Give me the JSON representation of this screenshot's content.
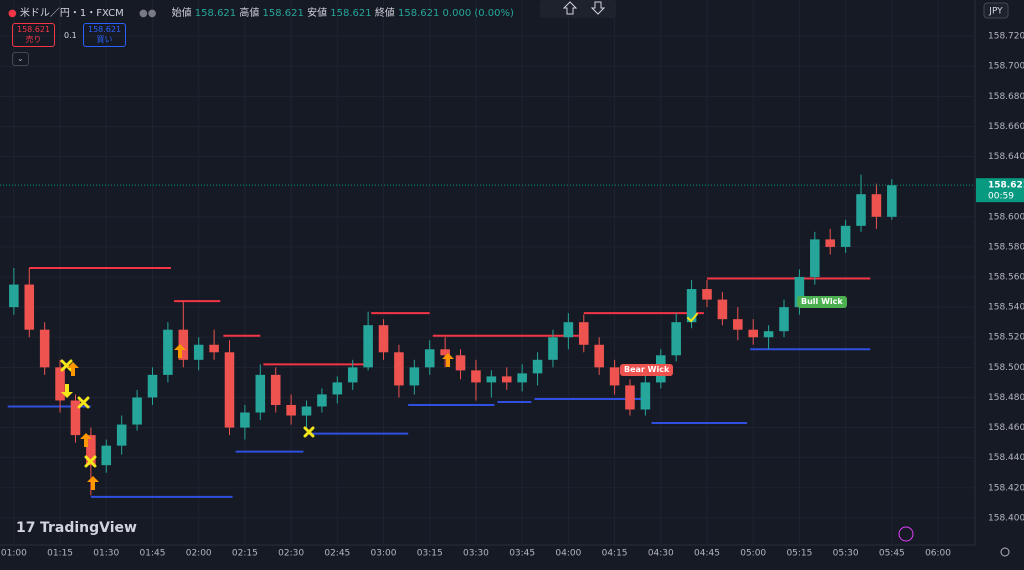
{
  "header": {
    "symbol": "米ドル／円・1・FXCM",
    "ohlc": [
      {
        "label": "始値",
        "value": "158.621"
      },
      {
        "label": "高値",
        "value": "158.621"
      },
      {
        "label": "安値",
        "value": "158.621"
      },
      {
        "label": "終値",
        "value": "158.621"
      }
    ],
    "change": "0.000 (0.00%)",
    "sell": {
      "price": "158.621",
      "label": "売り"
    },
    "spread": "0.1",
    "buy": {
      "price": "158.621",
      "label": "買い"
    },
    "currency": "JPY",
    "logo": "TradingView"
  },
  "chart_data": {
    "type": "candlestick",
    "x": [
      60,
      65,
      70,
      75,
      80,
      85,
      90,
      95,
      100,
      105,
      110,
      115,
      120,
      125,
      130,
      135,
      140,
      145,
      150,
      155,
      160,
      165,
      170,
      175,
      180,
      185,
      190,
      195,
      200,
      205,
      210,
      215,
      220,
      225,
      230,
      235,
      240,
      245,
      250,
      255,
      260,
      265,
      270,
      275,
      280,
      285,
      290,
      295,
      300,
      305,
      310,
      315,
      320,
      325,
      330,
      335,
      340,
      345
    ],
    "open": [
      158.54,
      158.555,
      158.525,
      158.5,
      158.478,
      158.455,
      158.435,
      158.448,
      158.462,
      158.48,
      158.495,
      158.525,
      158.505,
      158.515,
      158.51,
      158.46,
      158.47,
      158.495,
      158.475,
      158.468,
      158.474,
      158.482,
      158.49,
      158.5,
      158.528,
      158.51,
      158.488,
      158.5,
      158.512,
      158.508,
      158.498,
      158.49,
      158.494,
      158.49,
      158.496,
      158.505,
      158.52,
      158.53,
      158.515,
      158.5,
      158.488,
      158.472,
      158.49,
      158.508,
      158.53,
      158.552,
      158.545,
      158.532,
      158.525,
      158.52,
      158.524,
      158.54,
      158.56,
      158.585,
      158.58,
      158.594,
      158.615,
      158.6
    ],
    "high": [
      158.566,
      158.566,
      158.53,
      158.505,
      158.482,
      158.46,
      158.452,
      158.468,
      158.485,
      158.5,
      158.53,
      158.544,
      158.52,
      158.525,
      158.518,
      158.475,
      158.502,
      158.5,
      158.482,
      158.478,
      158.486,
      158.494,
      158.505,
      158.537,
      158.532,
      158.515,
      158.505,
      158.518,
      158.52,
      158.512,
      158.505,
      158.498,
      158.5,
      158.502,
      158.51,
      158.525,
      158.536,
      158.535,
      158.52,
      158.505,
      158.492,
      158.495,
      158.512,
      158.536,
      158.558,
      158.558,
      158.55,
      158.54,
      158.532,
      158.528,
      158.545,
      158.565,
      158.59,
      158.592,
      158.598,
      158.628,
      158.622,
      158.625
    ],
    "low": [
      158.535,
      158.52,
      158.495,
      158.47,
      158.45,
      158.415,
      158.43,
      158.442,
      158.458,
      158.475,
      158.49,
      158.5,
      158.498,
      158.505,
      158.455,
      158.452,
      158.465,
      158.47,
      158.462,
      158.46,
      158.47,
      158.476,
      158.485,
      158.498,
      158.505,
      158.48,
      158.482,
      158.495,
      158.5,
      158.492,
      158.478,
      158.48,
      158.485,
      158.484,
      158.488,
      158.5,
      158.512,
      158.51,
      158.495,
      158.482,
      158.468,
      158.468,
      158.486,
      158.504,
      158.526,
      158.54,
      158.528,
      158.518,
      158.515,
      158.512,
      158.52,
      158.535,
      158.555,
      158.575,
      158.576,
      158.59,
      158.592,
      158.598
    ],
    "close": [
      158.555,
      158.525,
      158.5,
      158.478,
      158.455,
      158.435,
      158.448,
      158.462,
      158.48,
      158.495,
      158.525,
      158.505,
      158.515,
      158.51,
      158.46,
      158.47,
      158.495,
      158.475,
      158.468,
      158.474,
      158.482,
      158.49,
      158.5,
      158.528,
      158.51,
      158.488,
      158.5,
      158.512,
      158.508,
      158.498,
      158.49,
      158.494,
      158.49,
      158.496,
      158.505,
      158.52,
      158.53,
      158.515,
      158.5,
      158.488,
      158.472,
      158.49,
      158.508,
      158.53,
      158.552,
      158.545,
      158.532,
      158.525,
      158.52,
      158.524,
      158.54,
      158.56,
      158.585,
      158.58,
      158.594,
      158.615,
      158.6,
      158.621
    ],
    "up_color": "#26a69a",
    "down_color": "#ef5350",
    "xlim": [
      55.5,
      372
    ],
    "ylim": [
      158.382,
      158.744
    ],
    "xticks": [
      {
        "value": 60,
        "label": "01:00"
      },
      {
        "value": 75,
        "label": "01:15"
      },
      {
        "value": 90,
        "label": "01:30"
      },
      {
        "value": 105,
        "label": "01:45"
      },
      {
        "value": 120,
        "label": "02:00"
      },
      {
        "value": 135,
        "label": "02:15"
      },
      {
        "value": 150,
        "label": "02:30"
      },
      {
        "value": 165,
        "label": "02:45"
      },
      {
        "value": 180,
        "label": "03:00"
      },
      {
        "value": 195,
        "label": "03:15"
      },
      {
        "value": 210,
        "label": "03:30"
      },
      {
        "value": 225,
        "label": "03:45"
      },
      {
        "value": 240,
        "label": "04:00"
      },
      {
        "value": 255,
        "label": "04:15"
      },
      {
        "value": 270,
        "label": "04:30"
      },
      {
        "value": 285,
        "label": "04:45"
      },
      {
        "value": 300,
        "label": "05:00"
      },
      {
        "value": 315,
        "label": "05:15"
      },
      {
        "value": 330,
        "label": "05:30"
      },
      {
        "value": 345,
        "label": "05:45"
      },
      {
        "value": 360,
        "label": "06:00"
      }
    ],
    "yticks": [
      {
        "value": 158.4,
        "label": "158.400"
      },
      {
        "value": 158.42,
        "label": "158.420"
      },
      {
        "value": 158.44,
        "label": "158.440"
      },
      {
        "value": 158.46,
        "label": "158.460"
      },
      {
        "value": 158.48,
        "label": "158.480"
      },
      {
        "value": 158.5,
        "label": "158.500"
      },
      {
        "value": 158.52,
        "label": "158.520"
      },
      {
        "value": 158.54,
        "label": "158.540"
      },
      {
        "value": 158.56,
        "label": "158.560"
      },
      {
        "value": 158.58,
        "label": "158.580"
      },
      {
        "value": 158.6,
        "label": "158.600"
      },
      {
        "value": 158.64,
        "label": "158.640"
      },
      {
        "value": 158.66,
        "label": "158.660"
      },
      {
        "value": 158.68,
        "label": "158.680"
      },
      {
        "value": 158.7,
        "label": "158.700"
      },
      {
        "value": 158.72,
        "label": "158.720"
      }
    ],
    "grid": true,
    "levels": [
      {
        "value": 158.566,
        "x": [
          65,
          111
        ],
        "color": "#f23645"
      },
      {
        "value": 158.544,
        "x": [
          112,
          127
        ],
        "color": "#f23645"
      },
      {
        "value": 158.521,
        "x": [
          128,
          140
        ],
        "color": "#f23645"
      },
      {
        "value": 158.502,
        "x": [
          141,
          175
        ],
        "color": "#f23645"
      },
      {
        "value": 158.536,
        "x": [
          176,
          195
        ],
        "color": "#f23645"
      },
      {
        "value": 158.521,
        "x": [
          196,
          244
        ],
        "color": "#f23645"
      },
      {
        "value": 158.536,
        "x": [
          245,
          284
        ],
        "color": "#f23645"
      },
      {
        "value": 158.559,
        "x": [
          285,
          338
        ],
        "color": "#f23645"
      },
      {
        "value": 158.474,
        "x": [
          58,
          85
        ],
        "color": "#2f4fe0"
      },
      {
        "value": 158.414,
        "x": [
          85,
          131
        ],
        "color": "#2f4fe0"
      },
      {
        "value": 158.444,
        "x": [
          132,
          154
        ],
        "color": "#2f4fe0"
      },
      {
        "value": 158.456,
        "x": [
          156,
          188
        ],
        "color": "#2f4fe0"
      },
      {
        "value": 158.475,
        "x": [
          188,
          216
        ],
        "color": "#2f4fe0"
      },
      {
        "value": 158.477,
        "x": [
          217,
          228
        ],
        "color": "#2f4fe0"
      },
      {
        "value": 158.479,
        "x": [
          229,
          265
        ],
        "color": "#2f4fe0"
      },
      {
        "value": 158.463,
        "x": [
          267,
          298
        ],
        "color": "#2f4fe0"
      },
      {
        "value": 158.512,
        "x": [
          299,
          338
        ],
        "color": "#2f4fe0"
      }
    ],
    "annotations": [
      {
        "text": "Bear Wick",
        "color": "#ef5350"
      },
      {
        "text": "Bull Wick",
        "color": "#4caf50"
      }
    ],
    "last_price": {
      "value": 158.621,
      "label": "158.621",
      "countdown": "00:59",
      "color": "#089981"
    }
  }
}
